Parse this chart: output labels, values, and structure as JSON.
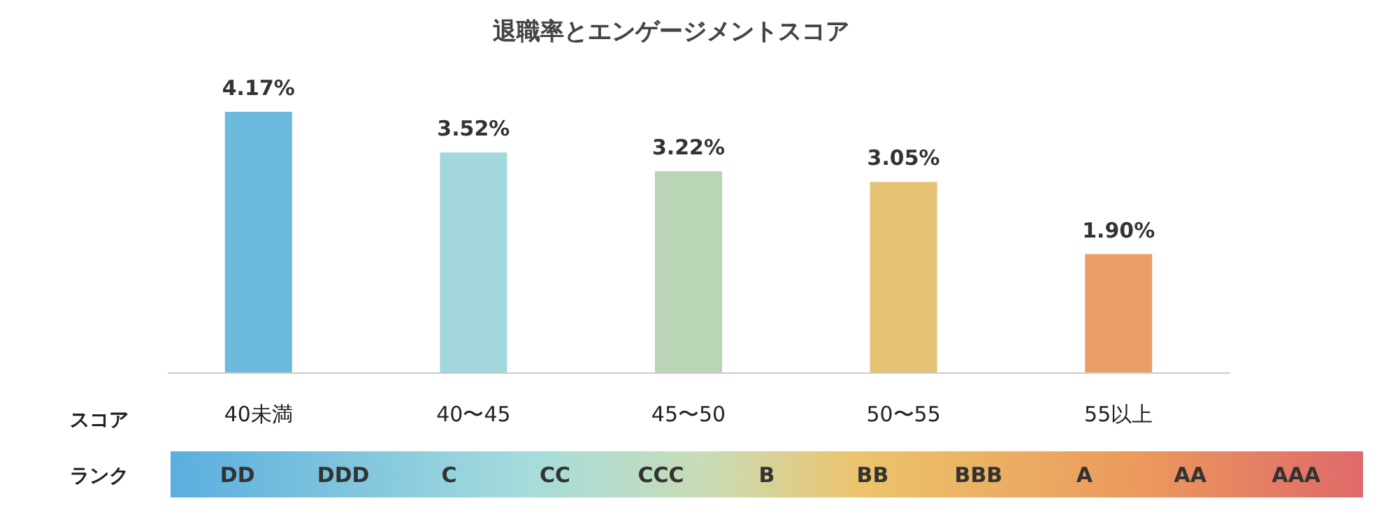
{
  "chart_data": {
    "type": "bar",
    "title": "退職率とエンゲージメントスコア",
    "xlabel": "スコア",
    "categories": [
      "40未満",
      "40〜45",
      "45〜50",
      "50〜55",
      "55以上"
    ],
    "values": [
      4.17,
      3.52,
      3.22,
      3.05,
      1.9
    ],
    "value_labels": [
      "4.17%",
      "3.52%",
      "3.22%",
      "3.05%",
      "1.90%"
    ],
    "colors": [
      "#6cbadd",
      "#a2d7dc",
      "#bad4b6",
      "#e5c173",
      "#e99f66"
    ],
    "annotations": [
      "ランク",
      "DD",
      "DDD",
      "C",
      "CC",
      "CCC",
      "B",
      "BB",
      "BBB",
      "A",
      "AA",
      "AAA"
    ]
  }
}
